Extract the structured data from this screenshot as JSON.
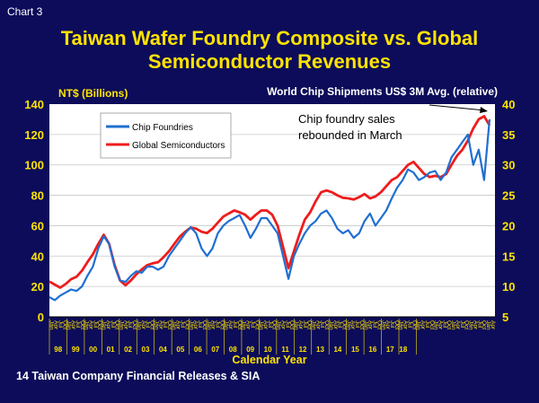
{
  "header": {
    "chart_label": "Chart 3",
    "title_line1": "Taiwan Wafer Foundry Composite vs. Global",
    "title_line2": "Semiconductor Revenues"
  },
  "footer": {
    "source": "14 Taiwan Company Financial Releases & SIA"
  },
  "colors": {
    "background": "#0c0c5a",
    "plot_bg": "#ffffff",
    "title": "#ffe300",
    "chip_foundries": "#1f6fd1",
    "global_semis": "#ee1c1c",
    "axis_label": "#ffe300"
  },
  "chart_data": {
    "type": "line",
    "title": "Taiwan Wafer Foundry Composite vs. Global Semiconductor Revenues",
    "xlabel": "Calendar Year",
    "ylabel_left": "NT$ (Billions)",
    "ylabel_right": "World Chip Shipments US$ 3M Avg. (relative)",
    "ylim_left": [
      0,
      140
    ],
    "ylim_right": [
      5,
      40
    ],
    "yticks_left": [
      0,
      20,
      40,
      60,
      80,
      100,
      120,
      140
    ],
    "yticks_right": [
      5,
      10,
      15,
      20,
      25,
      30,
      35,
      40
    ],
    "grid": true,
    "legend_position": "top-left",
    "annotation": {
      "text_line1": "Chip foundry sales",
      "text_line2": "rebounded in March"
    },
    "month_labels": [
      "Jan",
      "Apr",
      "Jul",
      "Oct",
      "Jan",
      "Apr",
      "Jul",
      "Oct",
      "Jan",
      "Apr",
      "Jul",
      "Oct",
      "Jan",
      "Apr",
      "Jul",
      "Oct",
      "Jan",
      "Apr",
      "Jul",
      "Oct",
      "Jan",
      "Apr",
      "Jul",
      "Oct",
      "Jan",
      "Apr",
      "Jul",
      "Oct",
      "Jan",
      "Apr",
      "Jul",
      "Oct",
      "Jan",
      "Apr",
      "Jul",
      "Oct",
      "Jan",
      "Apr",
      "Jul",
      "Oct",
      "Jan",
      "Apr",
      "Jul",
      "Oct",
      "Jan",
      "Apr",
      "Jul",
      "Oct",
      "Jan",
      "Apr",
      "Jul",
      "Oct",
      "Jan",
      "Apr",
      "Jul",
      "Oct",
      "Jan",
      "Apr",
      "Jul",
      "Oct",
      "Jan",
      "Apr",
      "Jul",
      "Oct",
      "Jan",
      "Apr",
      "Jul",
      "Oct",
      "Jan",
      "Apr",
      "Jul",
      "Oct",
      "Jan",
      "Apr",
      "Jul",
      "Oct",
      "Jan",
      "Apr",
      "Jul",
      "Oct",
      "Jan",
      "Apr",
      "Jul",
      "Oct",
      "Jan",
      "Apr",
      "Jul",
      "Oct",
      "Jan",
      "Apr",
      "Jul",
      "Oct",
      "Jan",
      "Apr",
      "Jul",
      "Oct",
      "Jan",
      "Apr",
      "Jul",
      "Oct",
      "Jan",
      "Apr"
    ],
    "year_labels": [
      "98",
      "99",
      "00",
      "01",
      "02",
      "03",
      "04",
      "05",
      "06",
      "07",
      "08",
      "09",
      "10",
      "11",
      "12",
      "13",
      "14",
      "15",
      "16",
      "17",
      "18"
    ],
    "series": [
      {
        "name": "Chip Foundries",
        "axis": "left",
        "x": [
          1998.0,
          1998.25,
          1998.5,
          1998.75,
          1999.0,
          1999.25,
          1999.5,
          1999.75,
          2000.0,
          2000.25,
          2000.5,
          2000.75,
          2001.0,
          2001.25,
          2001.5,
          2001.75,
          2002.0,
          2002.25,
          2002.5,
          2002.75,
          2003.0,
          2003.25,
          2003.5,
          2003.75,
          2004.0,
          2004.25,
          2004.5,
          2004.75,
          2005.0,
          2005.25,
          2005.5,
          2005.75,
          2006.0,
          2006.25,
          2006.5,
          2006.75,
          2007.0,
          2007.25,
          2007.5,
          2007.75,
          2008.0,
          2008.25,
          2008.5,
          2008.75,
          2009.0,
          2009.25,
          2009.5,
          2009.75,
          2010.0,
          2010.25,
          2010.5,
          2010.75,
          2011.0,
          2011.25,
          2011.5,
          2011.75,
          2012.0,
          2012.25,
          2012.5,
          2012.75,
          2013.0,
          2013.25,
          2013.5,
          2013.75,
          2014.0,
          2014.25,
          2014.5,
          2014.75,
          2015.0,
          2015.25,
          2015.5,
          2015.75,
          2016.0,
          2016.25,
          2016.5,
          2016.75,
          2017.0,
          2017.25,
          2017.5,
          2017.75,
          2018.0,
          2018.25
        ],
        "y": [
          13,
          11,
          14,
          16,
          18,
          17,
          20,
          27,
          33,
          45,
          53,
          48,
          33,
          24,
          23,
          27,
          30,
          29,
          33,
          33,
          31,
          33,
          40,
          45,
          50,
          55,
          59,
          55,
          45,
          40,
          45,
          55,
          60,
          63,
          65,
          67,
          60,
          52,
          58,
          65,
          65,
          60,
          55,
          40,
          25,
          40,
          48,
          55,
          60,
          63,
          68,
          70,
          65,
          58,
          55,
          57,
          52,
          55,
          63,
          68,
          60,
          65,
          70,
          78,
          85,
          90,
          97,
          95,
          90,
          92,
          95,
          96,
          90,
          95,
          105,
          110,
          115,
          120,
          100,
          110,
          90,
          130
        ]
      },
      {
        "name": "Global Semiconductors",
        "axis": "right",
        "x": [
          1998.0,
          1998.25,
          1998.5,
          1998.75,
          1999.0,
          1999.25,
          1999.5,
          1999.75,
          2000.0,
          2000.25,
          2000.5,
          2000.75,
          2001.0,
          2001.25,
          2001.5,
          2001.75,
          2002.0,
          2002.25,
          2002.5,
          2002.75,
          2003.0,
          2003.25,
          2003.5,
          2003.75,
          2004.0,
          2004.25,
          2004.5,
          2004.75,
          2005.0,
          2005.25,
          2005.5,
          2005.75,
          2006.0,
          2006.25,
          2006.5,
          2006.75,
          2007.0,
          2007.25,
          2007.5,
          2007.75,
          2008.0,
          2008.25,
          2008.5,
          2008.75,
          2009.0,
          2009.25,
          2009.5,
          2009.75,
          2010.0,
          2010.25,
          2010.5,
          2010.75,
          2011.0,
          2011.25,
          2011.5,
          2011.75,
          2012.0,
          2012.25,
          2012.5,
          2012.75,
          2013.0,
          2013.25,
          2013.5,
          2013.75,
          2014.0,
          2014.25,
          2014.5,
          2014.75,
          2015.0,
          2015.25,
          2015.5,
          2015.75,
          2016.0,
          2016.25,
          2016.5,
          2016.75,
          2017.0,
          2017.25,
          2017.5,
          2017.75,
          2018.0,
          2018.25
        ],
        "y": [
          10.8,
          10.3,
          9.8,
          10.4,
          11.2,
          11.6,
          12.6,
          14.0,
          15.3,
          17.0,
          18.5,
          17.0,
          13.5,
          11.0,
          10.2,
          11.0,
          12.0,
          12.8,
          13.5,
          13.8,
          14.0,
          14.8,
          15.8,
          17.0,
          18.2,
          19.0,
          19.7,
          19.5,
          19.0,
          18.8,
          19.5,
          20.5,
          21.5,
          22.0,
          22.5,
          22.2,
          21.8,
          21.0,
          21.8,
          22.5,
          22.5,
          21.8,
          20.0,
          16.5,
          13.0,
          15.8,
          18.5,
          21.0,
          22.2,
          24.0,
          25.5,
          25.8,
          25.5,
          25.0,
          24.6,
          24.5,
          24.3,
          24.7,
          25.2,
          24.5,
          24.8,
          25.5,
          26.5,
          27.5,
          28.0,
          29.0,
          30.0,
          30.5,
          29.5,
          28.5,
          28.0,
          28.2,
          28.0,
          28.5,
          30.0,
          31.5,
          32.5,
          34.0,
          36.0,
          37.5,
          38.0,
          36.5
        ]
      }
    ]
  }
}
